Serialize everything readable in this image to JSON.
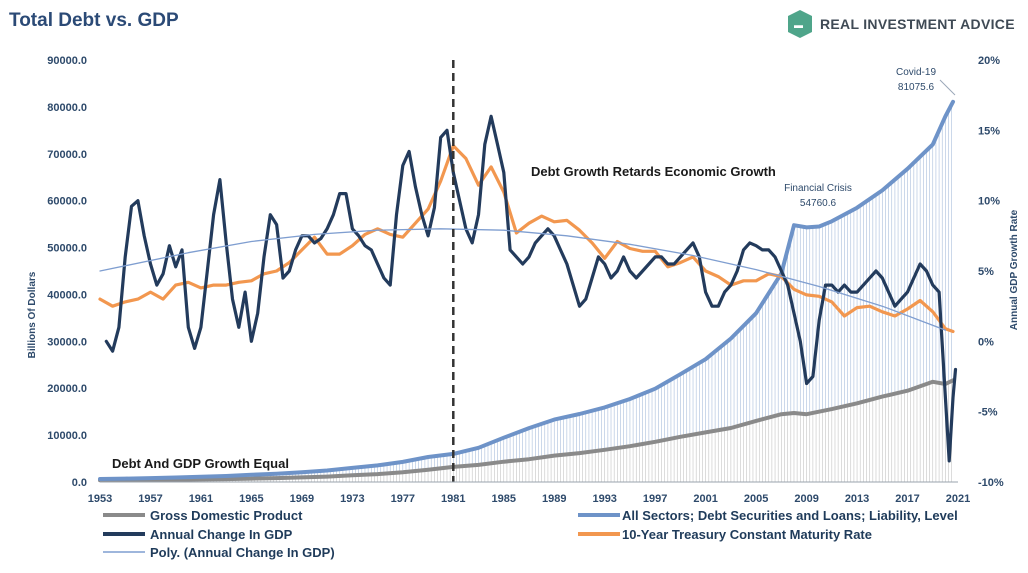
{
  "header": {
    "title": "Total Debt vs. GDP",
    "brand": "REAL INVESTMENT ADVICE"
  },
  "colors": {
    "gdp": "#8a8a8a",
    "debt": "#6e93c8",
    "annual_change": "#233b5c",
    "treasury": "#f2974f",
    "poly": "#7f9ed0",
    "title": "#2b4a76",
    "brand_green": "#4fa58a"
  },
  "chart_data": {
    "type": "line",
    "title": "Total Debt vs. GDP",
    "ylabel": "Billions Of Dollars",
    "y2label": "Annual GDP Growth Rate",
    "ylim": [
      0,
      90000
    ],
    "y2lim": [
      -10,
      20
    ],
    "xlim": [
      1953,
      2021
    ],
    "x_ticks": [
      "1953",
      "1957",
      "1961",
      "1965",
      "1969",
      "1973",
      "1977",
      "1981",
      "1985",
      "1989",
      "1993",
      "1997",
      "2001",
      "2005",
      "2009",
      "2013",
      "2017",
      "2021"
    ],
    "y_ticks": [
      "0.0",
      "10000.0",
      "20000.0",
      "30000.0",
      "40000.0",
      "50000.0",
      "60000.0",
      "70000.0",
      "80000.0",
      "90000.0"
    ],
    "y2_ticks": [
      "-10%",
      "-5%",
      "0%",
      "5%",
      "10%",
      "15%",
      "20%"
    ],
    "vline_year": 1981,
    "series": [
      {
        "name": "Gross Domestic Product",
        "axis": "left",
        "points": [
          [
            1953,
            390
          ],
          [
            1955,
            420
          ],
          [
            1957,
            470
          ],
          [
            1959,
            510
          ],
          [
            1961,
            545
          ],
          [
            1963,
            620
          ],
          [
            1965,
            720
          ],
          [
            1967,
            830
          ],
          [
            1969,
            990
          ],
          [
            1971,
            1160
          ],
          [
            1973,
            1420
          ],
          [
            1975,
            1690
          ],
          [
            1977,
            2070
          ],
          [
            1979,
            2630
          ],
          [
            1981,
            3210
          ],
          [
            1983,
            3640
          ],
          [
            1985,
            4340
          ],
          [
            1987,
            4870
          ],
          [
            1989,
            5640
          ],
          [
            1991,
            6160
          ],
          [
            1993,
            6860
          ],
          [
            1995,
            7640
          ],
          [
            1997,
            8580
          ],
          [
            1999,
            9630
          ],
          [
            2001,
            10580
          ],
          [
            2003,
            11510
          ],
          [
            2005,
            13040
          ],
          [
            2007,
            14450
          ],
          [
            2008,
            14710
          ],
          [
            2009,
            14450
          ],
          [
            2011,
            15540
          ],
          [
            2013,
            16780
          ],
          [
            2015,
            18220
          ],
          [
            2017,
            19480
          ],
          [
            2019,
            21380
          ],
          [
            2020,
            20890
          ],
          [
            2020.6,
            21700
          ]
        ]
      },
      {
        "name": "All Sectors; Debt Securities and Loans; Liability, Level",
        "axis": "left",
        "points": [
          [
            1953,
            640
          ],
          [
            1955,
            720
          ],
          [
            1957,
            830
          ],
          [
            1959,
            960
          ],
          [
            1961,
            1100
          ],
          [
            1963,
            1290
          ],
          [
            1965,
            1530
          ],
          [
            1967,
            1780
          ],
          [
            1969,
            2100
          ],
          [
            1971,
            2450
          ],
          [
            1973,
            3000
          ],
          [
            1975,
            3540
          ],
          [
            1977,
            4280
          ],
          [
            1979,
            5330
          ],
          [
            1981,
            6000
          ],
          [
            1983,
            7300
          ],
          [
            1985,
            9450
          ],
          [
            1987,
            11500
          ],
          [
            1989,
            13300
          ],
          [
            1991,
            14500
          ],
          [
            1993,
            15900
          ],
          [
            1995,
            17700
          ],
          [
            1997,
            19900
          ],
          [
            1999,
            23000
          ],
          [
            2001,
            26200
          ],
          [
            2003,
            30600
          ],
          [
            2005,
            36000
          ],
          [
            2007,
            44500
          ],
          [
            2008,
            54760.6
          ],
          [
            2009,
            54300
          ],
          [
            2010,
            54500
          ],
          [
            2011,
            55600
          ],
          [
            2013,
            58500
          ],
          [
            2015,
            62200
          ],
          [
            2017,
            66800
          ],
          [
            2019,
            72000
          ],
          [
            2020,
            78000
          ],
          [
            2020.6,
            81075.6
          ]
        ]
      },
      {
        "name": "Annual Change In GDP",
        "axis": "right",
        "points": [
          [
            1953.5,
            0.0
          ],
          [
            1954,
            -0.7
          ],
          [
            1954.5,
            1.0
          ],
          [
            1955,
            6.0
          ],
          [
            1955.5,
            9.6
          ],
          [
            1956,
            10.0
          ],
          [
            1956.5,
            7.5
          ],
          [
            1957,
            5.5
          ],
          [
            1957.5,
            4.0
          ],
          [
            1958,
            4.8
          ],
          [
            1958.5,
            6.8
          ],
          [
            1959,
            5.3
          ],
          [
            1959.5,
            6.5
          ],
          [
            1960,
            1.0
          ],
          [
            1960.5,
            -0.5
          ],
          [
            1961,
            1.0
          ],
          [
            1961.5,
            5.0
          ],
          [
            1962,
            9.0
          ],
          [
            1962.5,
            11.5
          ],
          [
            1963,
            7.0
          ],
          [
            1963.5,
            3.0
          ],
          [
            1964,
            1.0
          ],
          [
            1964.5,
            3.5
          ],
          [
            1965,
            0.0
          ],
          [
            1965.5,
            2.0
          ],
          [
            1966,
            6.0
          ],
          [
            1966.5,
            9.0
          ],
          [
            1967,
            8.3
          ],
          [
            1967.5,
            4.5
          ],
          [
            1968,
            5.0
          ],
          [
            1968.5,
            6.5
          ],
          [
            1969,
            7.5
          ],
          [
            1969.5,
            7.5
          ],
          [
            1970,
            7.0
          ],
          [
            1970.5,
            7.3
          ],
          [
            1971,
            8.0
          ],
          [
            1971.5,
            9.0
          ],
          [
            1972,
            10.5
          ],
          [
            1972.5,
            10.5
          ],
          [
            1973,
            8.0
          ],
          [
            1973.5,
            7.5
          ],
          [
            1974,
            6.8
          ],
          [
            1974.5,
            6.5
          ],
          [
            1975,
            5.5
          ],
          [
            1975.5,
            4.5
          ],
          [
            1976,
            4.0
          ],
          [
            1976.5,
            9.0
          ],
          [
            1977,
            12.5
          ],
          [
            1977.5,
            13.5
          ],
          [
            1978,
            11.0
          ],
          [
            1978.5,
            9.0
          ],
          [
            1979,
            7.5
          ],
          [
            1979.5,
            9.5
          ],
          [
            1980,
            14.5
          ],
          [
            1980.5,
            15.0
          ],
          [
            1981,
            12.0
          ],
          [
            1981.5,
            10.0
          ],
          [
            1982,
            8.0
          ],
          [
            1982.5,
            7.0
          ],
          [
            1983,
            9.0
          ],
          [
            1983.5,
            14.0
          ],
          [
            1984,
            16.0
          ],
          [
            1984.5,
            14.0
          ],
          [
            1985,
            12.0
          ],
          [
            1985.5,
            6.5
          ],
          [
            1986,
            6.0
          ],
          [
            1986.5,
            5.5
          ],
          [
            1987,
            6.0
          ],
          [
            1987.5,
            7.0
          ],
          [
            1988,
            7.5
          ],
          [
            1988.5,
            8.0
          ],
          [
            1989,
            7.5
          ],
          [
            1989.5,
            6.5
          ],
          [
            1990,
            5.5
          ],
          [
            1990.5,
            4.0
          ],
          [
            1991,
            2.5
          ],
          [
            1991.5,
            3.0
          ],
          [
            1992,
            4.5
          ],
          [
            1992.5,
            6.0
          ],
          [
            1993,
            5.5
          ],
          [
            1993.5,
            4.5
          ],
          [
            1994,
            5.0
          ],
          [
            1994.5,
            6.0
          ],
          [
            1995,
            5.0
          ],
          [
            1995.5,
            4.5
          ],
          [
            1996,
            5.0
          ],
          [
            1996.5,
            5.5
          ],
          [
            1997,
            6.0
          ],
          [
            1997.5,
            6.0
          ],
          [
            1998,
            5.5
          ],
          [
            1998.5,
            5.5
          ],
          [
            1999,
            6.0
          ],
          [
            1999.5,
            6.5
          ],
          [
            2000,
            7.0
          ],
          [
            2000.5,
            6.0
          ],
          [
            2001,
            3.5
          ],
          [
            2001.5,
            2.5
          ],
          [
            2002,
            2.5
          ],
          [
            2002.5,
            3.5
          ],
          [
            2003,
            4.0
          ],
          [
            2003.5,
            5.0
          ],
          [
            2004,
            6.5
          ],
          [
            2004.5,
            7.0
          ],
          [
            2005,
            6.8
          ],
          [
            2005.5,
            6.5
          ],
          [
            2006,
            6.5
          ],
          [
            2006.5,
            6.0
          ],
          [
            2007,
            5.0
          ],
          [
            2007.5,
            4.0
          ],
          [
            2008,
            2.0
          ],
          [
            2008.5,
            0.0
          ],
          [
            2009,
            -3.0
          ],
          [
            2009.5,
            -2.5
          ],
          [
            2010,
            1.5
          ],
          [
            2010.5,
            4.0
          ],
          [
            2011,
            4.0
          ],
          [
            2011.5,
            3.5
          ],
          [
            2012,
            4.0
          ],
          [
            2012.5,
            3.5
          ],
          [
            2013,
            3.5
          ],
          [
            2013.5,
            4.0
          ],
          [
            2014,
            4.5
          ],
          [
            2014.5,
            5.0
          ],
          [
            2015,
            4.5
          ],
          [
            2015.5,
            3.5
          ],
          [
            2016,
            2.5
          ],
          [
            2016.5,
            3.0
          ],
          [
            2017,
            3.5
          ],
          [
            2017.5,
            4.5
          ],
          [
            2018,
            5.5
          ],
          [
            2018.5,
            5.0
          ],
          [
            2019,
            4.0
          ],
          [
            2019.5,
            3.5
          ],
          [
            2020,
            -4.0
          ],
          [
            2020.3,
            -8.5
          ],
          [
            2020.6,
            -4.0
          ],
          [
            2020.8,
            -2.0
          ]
        ]
      },
      {
        "name": "10-Year Treasury Constant Maturity Rate",
        "axis": "right",
        "points": [
          [
            1953,
            3.0
          ],
          [
            1954,
            2.5
          ],
          [
            1955,
            2.8
          ],
          [
            1956,
            3.0
          ],
          [
            1957,
            3.5
          ],
          [
            1958,
            3.0
          ],
          [
            1959,
            4.0
          ],
          [
            1960,
            4.2
          ],
          [
            1961,
            3.8
          ],
          [
            1962,
            4.0
          ],
          [
            1963,
            4.0
          ],
          [
            1964,
            4.2
          ],
          [
            1965,
            4.3
          ],
          [
            1966,
            4.8
          ],
          [
            1967,
            5.0
          ],
          [
            1968,
            5.6
          ],
          [
            1969,
            6.5
          ],
          [
            1970,
            7.4
          ],
          [
            1971,
            6.2
          ],
          [
            1972,
            6.2
          ],
          [
            1973,
            6.8
          ],
          [
            1974,
            7.6
          ],
          [
            1975,
            8.0
          ],
          [
            1976,
            7.6
          ],
          [
            1977,
            7.4
          ],
          [
            1978,
            8.4
          ],
          [
            1979,
            9.4
          ],
          [
            1980,
            11.4
          ],
          [
            1981,
            13.9
          ],
          [
            1982,
            13.0
          ],
          [
            1983,
            11.1
          ],
          [
            1984,
            12.4
          ],
          [
            1985,
            10.6
          ],
          [
            1986,
            7.7
          ],
          [
            1987,
            8.4
          ],
          [
            1988,
            8.9
          ],
          [
            1989,
            8.5
          ],
          [
            1990,
            8.6
          ],
          [
            1991,
            7.9
          ],
          [
            1992,
            7.0
          ],
          [
            1993,
            5.9
          ],
          [
            1994,
            7.1
          ],
          [
            1995,
            6.6
          ],
          [
            1996,
            6.4
          ],
          [
            1997,
            6.4
          ],
          [
            1998,
            5.3
          ],
          [
            1999,
            5.6
          ],
          [
            2000,
            6.0
          ],
          [
            2001,
            5.0
          ],
          [
            2002,
            4.6
          ],
          [
            2003,
            4.0
          ],
          [
            2004,
            4.3
          ],
          [
            2005,
            4.3
          ],
          [
            2006,
            4.8
          ],
          [
            2007,
            4.6
          ],
          [
            2008,
            3.7
          ],
          [
            2009,
            3.3
          ],
          [
            2010,
            3.2
          ],
          [
            2011,
            2.8
          ],
          [
            2012,
            1.8
          ],
          [
            2013,
            2.4
          ],
          [
            2014,
            2.5
          ],
          [
            2015,
            2.1
          ],
          [
            2016,
            1.8
          ],
          [
            2017,
            2.3
          ],
          [
            2018,
            2.9
          ],
          [
            2019,
            2.1
          ],
          [
            2020,
            0.9
          ],
          [
            2020.6,
            0.7
          ]
        ]
      },
      {
        "name": "Poly. (Annual Change In GDP)",
        "axis": "right",
        "points": [
          [
            1953,
            5.0
          ],
          [
            1960,
            6.3
          ],
          [
            1965,
            7.1
          ],
          [
            1970,
            7.6
          ],
          [
            1975,
            7.9
          ],
          [
            1980,
            8.0
          ],
          [
            1985,
            7.9
          ],
          [
            1990,
            7.5
          ],
          [
            1995,
            6.9
          ],
          [
            2000,
            6.1
          ],
          [
            2005,
            5.1
          ],
          [
            2010,
            3.9
          ],
          [
            2015,
            2.5
          ],
          [
            2020,
            0.8
          ]
        ]
      }
    ],
    "annotations": {
      "covid": "Covid-19",
      "covid_value": "81075.6",
      "crisis": "Financial Crisis",
      "crisis_value": "54760.6",
      "retards": "Debt Growth Retards Economic Growth",
      "equal": "Debt And GDP Growth Equal"
    },
    "legend": [
      "Gross Domestic Product",
      "All Sectors; Debt Securities and Loans; Liability, Level",
      "Annual Change In GDP",
      "10-Year Treasury Constant Maturity Rate",
      "Poly. (Annual Change In GDP)"
    ]
  }
}
